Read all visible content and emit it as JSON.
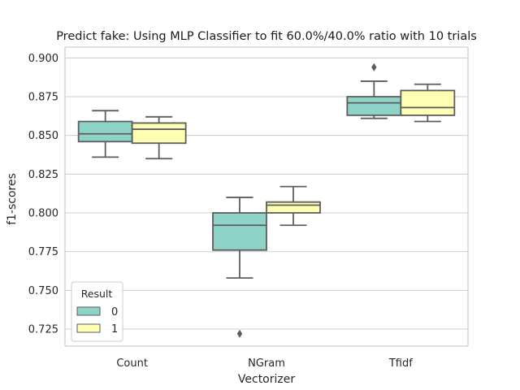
{
  "chart_data": {
    "type": "box",
    "title": "Predict fake: Using MLP Classifier to fit 60.0%/40.0% ratio with 10 trials",
    "xlabel": "Vectorizer",
    "ylabel": "f1-scores",
    "categories": [
      "Count",
      "NGram",
      "Tfidf"
    ],
    "ylim": [
      0.714,
      0.907
    ],
    "yticks": [
      0.725,
      0.75,
      0.775,
      0.8,
      0.825,
      0.85,
      0.875,
      0.9
    ],
    "ytick_labels": [
      "0.725",
      "0.750",
      "0.775",
      "0.800",
      "0.825",
      "0.850",
      "0.875",
      "0.900"
    ],
    "grid": true,
    "legend": {
      "title": "Result",
      "position": "lower-left"
    },
    "series": [
      {
        "name": "0",
        "color": "#8dd3c7",
        "boxes": [
          {
            "whisker_low": 0.836,
            "q1": 0.846,
            "median": 0.851,
            "q3": 0.859,
            "whisker_high": 0.866,
            "outliers": []
          },
          {
            "whisker_low": 0.758,
            "q1": 0.776,
            "median": 0.792,
            "q3": 0.8,
            "whisker_high": 0.81,
            "outliers": [
              0.722
            ]
          },
          {
            "whisker_low": 0.861,
            "q1": 0.863,
            "median": 0.871,
            "q3": 0.875,
            "whisker_high": 0.885,
            "outliers": [
              0.894
            ]
          }
        ]
      },
      {
        "name": "1",
        "color": "#ffffb3",
        "boxes": [
          {
            "whisker_low": 0.835,
            "q1": 0.845,
            "median": 0.854,
            "q3": 0.858,
            "whisker_high": 0.862,
            "outliers": []
          },
          {
            "whisker_low": 0.792,
            "q1": 0.8,
            "median": 0.805,
            "q3": 0.807,
            "whisker_high": 0.817,
            "outliers": []
          },
          {
            "whisker_low": 0.859,
            "q1": 0.863,
            "median": 0.868,
            "q3": 0.879,
            "whisker_high": 0.883,
            "outliers": []
          }
        ]
      }
    ]
  }
}
